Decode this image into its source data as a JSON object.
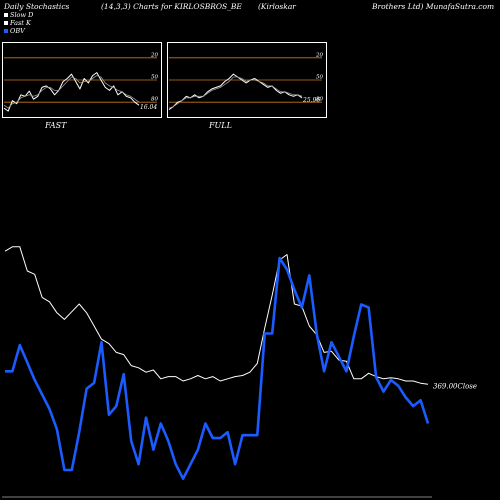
{
  "header": {
    "title_left": "Daily Stochastics",
    "title_mid": "(14,3,3) Charts for KIRLOSBROS_BE",
    "title_mid2": "(Kirloskar",
    "title_right": "Brothers Ltd) MunafaSutra.com"
  },
  "legend": [
    {
      "label": "Slow  D",
      "color": "#ffffff"
    },
    {
      "label": "Fast K",
      "color": "#ffffff"
    },
    {
      "label": "OBV",
      "color": "#1a5cff"
    }
  ],
  "colors": {
    "background": "#000000",
    "obv": "#1a5cff",
    "price": "#ffffff",
    "band": "#c8781e"
  },
  "chart_data": [
    {
      "type": "line",
      "name": "FAST",
      "ylim": [
        0,
        100
      ],
      "levels": [
        20,
        50,
        80
      ],
      "tick_labels": [
        "80",
        "50",
        "20"
      ],
      "last_value_label": "16.04",
      "series": [
        {
          "values": [
            12,
            8,
            22,
            18,
            30,
            28,
            35,
            24,
            28,
            40,
            42,
            38,
            30,
            36,
            48,
            52,
            58,
            48,
            38,
            52,
            46,
            56,
            60,
            50,
            40,
            36,
            42,
            30,
            34,
            28,
            26,
            20,
            16
          ]
        },
        {
          "values": [
            16,
            12,
            18,
            20,
            26,
            28,
            30,
            28,
            30,
            36,
            40,
            40,
            36,
            36,
            42,
            48,
            54,
            52,
            46,
            48,
            48,
            52,
            56,
            54,
            46,
            42,
            40,
            36,
            34,
            30,
            28,
            24,
            20
          ]
        }
      ]
    },
    {
      "type": "line",
      "name": "FULL",
      "ylim": [
        0,
        100
      ],
      "levels": [
        20,
        50,
        80
      ],
      "tick_labels": [
        "80",
        "50",
        "20"
      ],
      "last_value_label": "25.96",
      "series": [
        {
          "values": [
            10,
            14,
            20,
            22,
            28,
            26,
            30,
            26,
            28,
            34,
            38,
            40,
            42,
            48,
            52,
            58,
            54,
            50,
            46,
            50,
            52,
            48,
            44,
            40,
            42,
            36,
            32,
            34,
            30,
            28,
            30,
            26
          ]
        },
        {
          "values": [
            12,
            14,
            18,
            22,
            26,
            26,
            28,
            28,
            28,
            32,
            36,
            38,
            40,
            44,
            48,
            54,
            54,
            52,
            48,
            50,
            50,
            48,
            46,
            42,
            42,
            38,
            34,
            34,
            32,
            30,
            30,
            28
          ]
        }
      ]
    },
    {
      "type": "line",
      "name": "price_obv",
      "price_label": "369.00",
      "price_axis_label": "Close",
      "series": [
        {
          "name": "Close",
          "color": "#ffffff",
          "values": [
            488,
            492,
            492,
            470,
            467,
            446,
            442,
            432,
            426,
            433,
            440,
            432,
            420,
            408,
            404,
            396,
            394,
            384,
            382,
            378,
            380,
            372,
            374,
            374,
            370,
            372,
            375,
            372,
            374,
            370,
            372,
            374,
            375,
            378,
            386,
            418,
            448,
            480,
            485,
            440,
            438,
            420,
            412,
            396,
            397,
            389,
            388,
            372,
            372,
            377,
            374,
            372,
            373,
            372,
            370,
            370,
            368,
            367
          ]
        },
        {
          "name": "OBV",
          "color": "#1a5cff",
          "values": [
            120,
            120,
            210,
            150,
            90,
            40,
            -10,
            -80,
            -220,
            -220,
            -90,
            60,
            80,
            220,
            -30,
            0,
            110,
            -120,
            -200,
            -40,
            -150,
            -60,
            -120,
            -200,
            -250,
            -200,
            -150,
            -60,
            -110,
            -110,
            -90,
            -200,
            -100,
            -100,
            -100,
            250,
            250,
            510,
            470,
            400,
            340,
            450,
            250,
            120,
            220,
            170,
            120,
            240,
            350,
            340,
            100,
            50,
            90,
            70,
            30,
            0,
            20,
            -60
          ]
        }
      ]
    }
  ]
}
